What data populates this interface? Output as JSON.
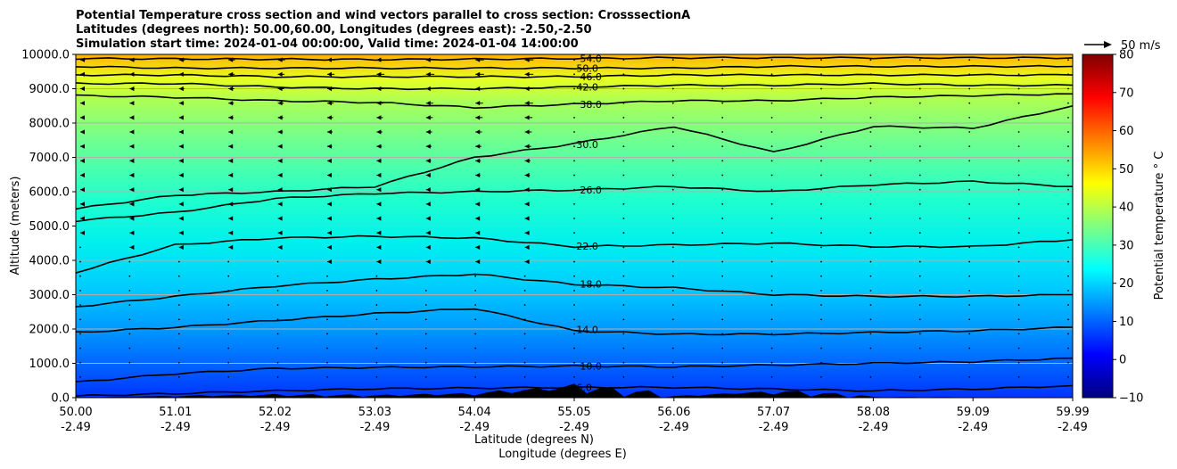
{
  "chart_data": {
    "type": "heatmap",
    "title": [
      "Potential Temperature cross section and wind vectors parallel to cross section: CrosssectionA",
      "Latitudes (degrees north): 50.00,60.00, Longitudes (degrees east): -2.50,-2.50",
      "Simulation start time: 2024-01-04 00:00:00, Valid time: 2024-01-04 14:00:00"
    ],
    "ylabel": "Altitude (meters)",
    "xlabel_lat": "Latitude (degrees N)",
    "xlabel_lon": "Longitude (degrees E)",
    "xlim": [
      50.0,
      59.99
    ],
    "ylim": [
      0,
      10000
    ],
    "grid": "horizontal",
    "x_ticks": [
      {
        "lat": "50.00",
        "lon": "-2.49"
      },
      {
        "lat": "51.01",
        "lon": "-2.49"
      },
      {
        "lat": "52.02",
        "lon": "-2.49"
      },
      {
        "lat": "53.03",
        "lon": "-2.49"
      },
      {
        "lat": "54.04",
        "lon": "-2.49"
      },
      {
        "lat": "55.05",
        "lon": "-2.49"
      },
      {
        "lat": "56.06",
        "lon": "-2.49"
      },
      {
        "lat": "57.07",
        "lon": "-2.49"
      },
      {
        "lat": "58.08",
        "lon": "-2.49"
      },
      {
        "lat": "59.09",
        "lon": "-2.49"
      },
      {
        "lat": "59.99",
        "lon": "-2.49"
      }
    ],
    "y_ticks": [
      "0.0",
      "1000.0",
      "2000.0",
      "3000.0",
      "4000.0",
      "5000.0",
      "6000.0",
      "7000.0",
      "8000.0",
      "9000.0",
      "10000.0"
    ],
    "colorbar": {
      "label": "Potential temperature ° C",
      "min": -10,
      "max": 80,
      "ticks": [
        "−10",
        "0",
        "10",
        "20",
        "30",
        "40",
        "50",
        "60",
        "70",
        "80"
      ],
      "colormap": "jet"
    },
    "wind_key": {
      "label": "50 m/s"
    },
    "contours": [
      {
        "label": "6.0",
        "altitude": [
          50,
          120,
          200,
          260,
          280,
          300,
          300,
          250,
          200,
          250,
          350
        ]
      },
      {
        "label": "10.0",
        "altitude": [
          450,
          700,
          850,
          880,
          900,
          920,
          900,
          950,
          1000,
          1050,
          1150
        ]
      },
      {
        "label": "14.0",
        "altitude": [
          1900,
          2050,
          2250,
          2450,
          2600,
          1950,
          1850,
          1850,
          1900,
          1950,
          2050
        ]
      },
      {
        "label": "18.0",
        "altitude": [
          2650,
          2950,
          3250,
          3450,
          3600,
          3300,
          3200,
          3000,
          2950,
          2950,
          3000
        ]
      },
      {
        "label": "22.0",
        "altitude": [
          3650,
          4450,
          4650,
          4700,
          4650,
          4400,
          4450,
          4500,
          4400,
          4400,
          4600
        ]
      },
      {
        "label": "26.0",
        "altitude": [
          5150,
          5400,
          5800,
          5950,
          6000,
          6050,
          6150,
          6000,
          6200,
          6300,
          6150
        ]
      },
      {
        "label": "30.0",
        "altitude": [
          5500,
          5900,
          6000,
          6150,
          7000,
          7400,
          7900,
          7150,
          7900,
          7850,
          8500
        ]
      },
      {
        "label": "38.0",
        "altitude": [
          8800,
          8750,
          8650,
          8600,
          8450,
          8550,
          8650,
          8650,
          8750,
          8800,
          8850
        ]
      },
      {
        "label": "42.0",
        "altitude": [
          9150,
          9150,
          9050,
          9000,
          9000,
          9050,
          9100,
          9100,
          9150,
          9100,
          9100
        ]
      },
      {
        "label": "46.0",
        "altitude": [
          9400,
          9400,
          9350,
          9350,
          9350,
          9350,
          9400,
          9400,
          9400,
          9400,
          9400
        ]
      },
      {
        "label": "50.0",
        "altitude": [
          9650,
          9600,
          9600,
          9600,
          9600,
          9600,
          9600,
          9650,
          9650,
          9650,
          9650
        ]
      },
      {
        "label": "54.0",
        "altitude": [
          9880,
          9870,
          9860,
          9850,
          9860,
          9880,
          9900,
          9900,
          9900,
          9900,
          9900
        ]
      }
    ],
    "terrain_altitude": [
      10,
      50,
      80,
      60,
      120,
      300,
      40,
      180,
      20,
      10,
      10
    ]
  }
}
